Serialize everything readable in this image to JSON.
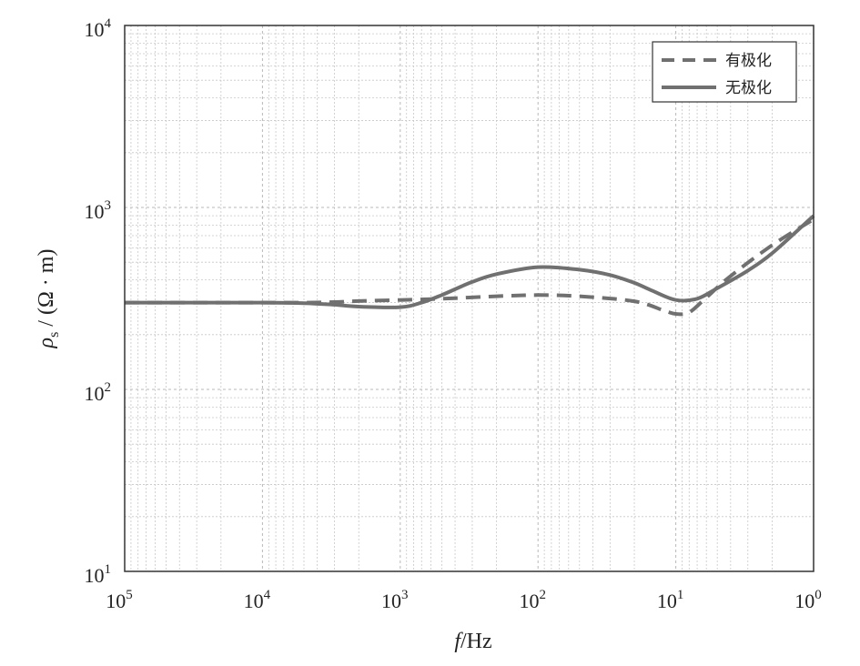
{
  "chart_data": {
    "type": "line",
    "x_scale": "log",
    "y_scale": "log",
    "x_reversed": true,
    "xlim": [
      100000,
      1
    ],
    "ylim": [
      10,
      10000
    ],
    "grid": true,
    "legend_position": "top-right",
    "colors": {
      "series": "#707070",
      "grid": "#c8c8c8",
      "axis": "#333333"
    },
    "xlabel": {
      "italic": "f",
      "rest": "/Hz"
    },
    "ylabel": {
      "symbol": "ρ",
      "sub": "s",
      "rest": " / (Ω · m)"
    },
    "x_ticks": [
      {
        "base": "10",
        "exp": "5"
      },
      {
        "base": "10",
        "exp": "4"
      },
      {
        "base": "10",
        "exp": "3"
      },
      {
        "base": "10",
        "exp": "2"
      },
      {
        "base": "10",
        "exp": "1"
      },
      {
        "base": "10",
        "exp": "0"
      }
    ],
    "y_ticks": [
      {
        "base": "10",
        "exp": "4"
      },
      {
        "base": "10",
        "exp": "3"
      },
      {
        "base": "10",
        "exp": "2"
      },
      {
        "base": "10",
        "exp": "1"
      }
    ],
    "series": [
      {
        "name": "有极化",
        "style": "dashed",
        "x": [
          100000,
          30000,
          10000,
          5000,
          3000,
          2000,
          1000,
          500,
          200,
          100,
          50,
          20,
          12,
          10,
          8,
          6,
          4,
          2,
          1
        ],
        "y": [
          300,
          300,
          300,
          300,
          302,
          306,
          310,
          315,
          325,
          330,
          325,
          305,
          270,
          260,
          265,
          320,
          420,
          620,
          860
        ]
      },
      {
        "name": "无极化",
        "style": "solid",
        "x": [
          100000,
          30000,
          10000,
          5000,
          3000,
          2000,
          1000,
          700,
          500,
          300,
          200,
          100,
          50,
          30,
          20,
          15,
          10,
          7,
          5,
          3,
          2,
          1
        ],
        "y": [
          300,
          300,
          300,
          298,
          292,
          285,
          283,
          300,
          330,
          390,
          430,
          470,
          455,
          425,
          385,
          350,
          310,
          315,
          360,
          450,
          560,
          900
        ]
      }
    ]
  }
}
